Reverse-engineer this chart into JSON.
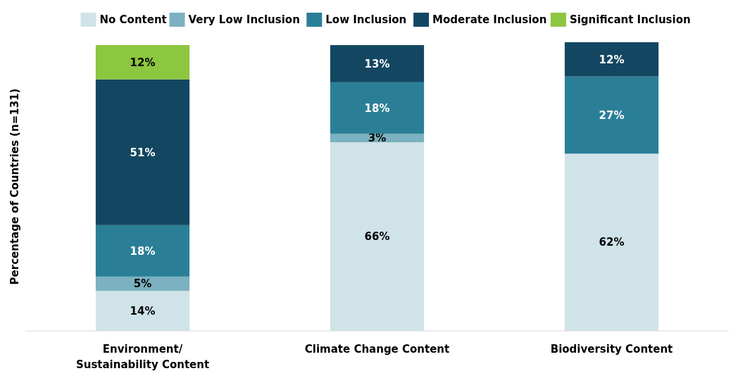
{
  "chart_data": {
    "type": "bar",
    "stacked": true,
    "ylabel": "Percentage of Countries (n=131)",
    "categories": [
      "Environment/ Sustainability Content",
      "Climate Change Content",
      "Biodiversity Content"
    ],
    "ylim": [
      0,
      101
    ],
    "legend": "top",
    "series": [
      {
        "name": "No Content",
        "color": "#d0e3e9",
        "values": [
          14,
          66,
          62
        ],
        "value_labels": [
          "14%",
          "66%",
          "62%"
        ]
      },
      {
        "name": "Very Low Inclusion",
        "color": "#7bb1c0",
        "values": [
          5,
          3,
          0
        ],
        "value_labels": [
          "5%",
          "3%",
          null
        ]
      },
      {
        "name": "Low Inclusion",
        "color": "#2a7f97",
        "values": [
          18,
          18,
          27
        ],
        "value_labels": [
          "18%",
          "18%",
          "27%"
        ]
      },
      {
        "name": "Moderate Inclusion",
        "color": "#134761",
        "values": [
          51,
          13,
          12
        ],
        "value_labels": [
          "51%",
          "13%",
          "12%"
        ]
      },
      {
        "name": "Significant Inclusion",
        "color": "#8dc63f",
        "values": [
          12,
          0,
          0
        ],
        "value_labels": [
          "12%",
          null,
          null
        ]
      }
    ]
  }
}
